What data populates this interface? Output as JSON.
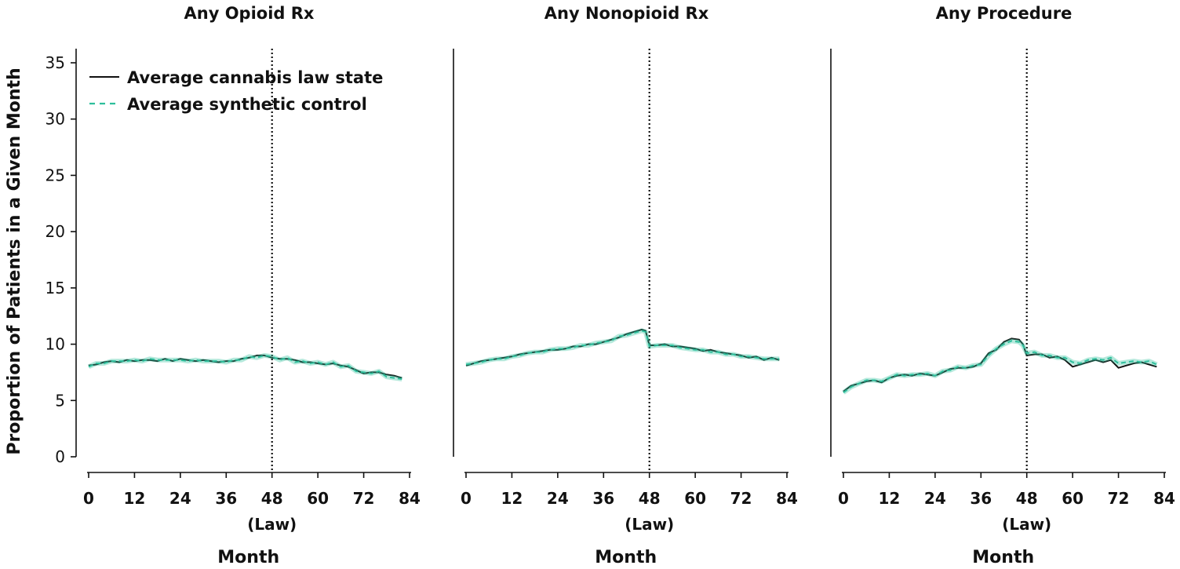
{
  "chart_data": [
    {
      "type": "line",
      "title": "Any Opioid Rx",
      "xlabel": "Month",
      "ylabel": "Proportion of Patients in a Given Month",
      "xlim": [
        0,
        84
      ],
      "ylim": [
        0,
        35
      ],
      "xticks": [
        0,
        12,
        24,
        36,
        48,
        60,
        72,
        84
      ],
      "yticks": [
        0,
        5,
        10,
        15,
        20,
        25,
        30,
        35
      ],
      "law_month": 48,
      "law_label": "(Law)",
      "legend": {
        "placement": "top-left"
      },
      "series": [
        {
          "name": "Average cannabis law state",
          "color": "#111111",
          "style": "solid",
          "x": [
            0,
            2,
            4,
            6,
            8,
            10,
            12,
            14,
            16,
            18,
            20,
            22,
            24,
            26,
            28,
            30,
            32,
            34,
            36,
            38,
            40,
            42,
            44,
            46,
            48,
            50,
            52,
            54,
            56,
            58,
            60,
            62,
            64,
            66,
            68,
            70,
            72,
            74,
            76,
            78,
            80,
            82
          ],
          "y": [
            8.1,
            8.2,
            8.4,
            8.5,
            8.4,
            8.6,
            8.5,
            8.6,
            8.6,
            8.5,
            8.7,
            8.5,
            8.7,
            8.6,
            8.5,
            8.6,
            8.5,
            8.4,
            8.5,
            8.5,
            8.7,
            8.8,
            9.0,
            9.0,
            8.8,
            8.7,
            8.7,
            8.6,
            8.4,
            8.4,
            8.3,
            8.2,
            8.3,
            8.1,
            8.0,
            7.7,
            7.4,
            7.5,
            7.5,
            7.3,
            7.2,
            7.0
          ]
        },
        {
          "name": "Average synthetic control",
          "color": "#2ebf9c",
          "style": "dashed",
          "x": [
            0,
            2,
            4,
            6,
            8,
            10,
            12,
            14,
            16,
            18,
            20,
            22,
            24,
            26,
            28,
            30,
            32,
            34,
            36,
            38,
            40,
            42,
            44,
            46,
            48,
            50,
            52,
            54,
            56,
            58,
            60,
            62,
            64,
            66,
            68,
            70,
            72,
            74,
            76,
            78,
            80,
            82
          ],
          "y": [
            8.0,
            8.3,
            8.3,
            8.5,
            8.5,
            8.5,
            8.6,
            8.5,
            8.7,
            8.6,
            8.6,
            8.6,
            8.6,
            8.5,
            8.6,
            8.5,
            8.5,
            8.5,
            8.4,
            8.6,
            8.6,
            8.9,
            8.8,
            9.0,
            8.9,
            8.6,
            8.8,
            8.4,
            8.5,
            8.3,
            8.4,
            8.2,
            8.4,
            8.0,
            8.1,
            7.6,
            7.5,
            7.4,
            7.6,
            7.1,
            7.0,
            6.9
          ]
        }
      ]
    },
    {
      "type": "line",
      "title": "Any Nonopioid Rx",
      "xlabel": "Month",
      "xlim": [
        0,
        84
      ],
      "ylim": [
        0,
        35
      ],
      "xticks": [
        0,
        12,
        24,
        36,
        48,
        60,
        72,
        84
      ],
      "law_month": 48,
      "law_label": "(Law)",
      "series": [
        {
          "name": "Average cannabis law state",
          "color": "#111111",
          "style": "solid",
          "x": [
            0,
            2,
            4,
            6,
            8,
            10,
            12,
            14,
            16,
            18,
            20,
            22,
            24,
            26,
            28,
            30,
            32,
            34,
            36,
            38,
            40,
            42,
            44,
            46,
            47,
            48,
            50,
            52,
            54,
            56,
            58,
            60,
            62,
            64,
            66,
            68,
            70,
            72,
            74,
            76,
            78,
            80,
            82
          ],
          "y": [
            8.1,
            8.3,
            8.5,
            8.6,
            8.7,
            8.8,
            8.9,
            9.1,
            9.2,
            9.3,
            9.4,
            9.5,
            9.5,
            9.6,
            9.8,
            9.8,
            10.0,
            10.0,
            10.2,
            10.4,
            10.6,
            10.9,
            11.1,
            11.3,
            11.2,
            9.9,
            9.9,
            10.0,
            9.8,
            9.8,
            9.7,
            9.6,
            9.4,
            9.5,
            9.3,
            9.2,
            9.1,
            9.0,
            8.8,
            8.9,
            8.6,
            8.8,
            8.6
          ]
        },
        {
          "name": "Average synthetic control",
          "color": "#2ebf9c",
          "style": "dashed",
          "x": [
            0,
            2,
            4,
            6,
            8,
            10,
            12,
            14,
            16,
            18,
            20,
            22,
            24,
            26,
            28,
            30,
            32,
            34,
            36,
            38,
            40,
            42,
            44,
            46,
            47,
            48,
            50,
            52,
            54,
            56,
            58,
            60,
            62,
            64,
            66,
            68,
            70,
            72,
            74,
            76,
            78,
            80,
            82
          ],
          "y": [
            8.2,
            8.3,
            8.4,
            8.6,
            8.7,
            8.7,
            8.9,
            9.0,
            9.2,
            9.3,
            9.3,
            9.5,
            9.6,
            9.6,
            9.7,
            9.9,
            9.9,
            10.1,
            10.2,
            10.3,
            10.7,
            10.8,
            11.0,
            11.2,
            11.1,
            9.8,
            9.9,
            9.9,
            9.9,
            9.7,
            9.6,
            9.5,
            9.5,
            9.3,
            9.3,
            9.1,
            9.1,
            8.9,
            8.9,
            8.8,
            8.7,
            8.7,
            8.7
          ]
        }
      ]
    },
    {
      "type": "line",
      "title": "Any Procedure",
      "xlabel": "Month",
      "xlim": [
        0,
        84
      ],
      "ylim": [
        0,
        35
      ],
      "xticks": [
        0,
        12,
        24,
        36,
        48,
        60,
        72,
        84
      ],
      "law_month": 48,
      "law_label": "(Law)",
      "series": [
        {
          "name": "Average cannabis law state",
          "color": "#111111",
          "style": "solid",
          "x": [
            0,
            2,
            4,
            6,
            8,
            10,
            12,
            14,
            16,
            18,
            20,
            22,
            24,
            26,
            28,
            30,
            32,
            34,
            36,
            38,
            40,
            42,
            44,
            46,
            47,
            48,
            50,
            52,
            54,
            56,
            58,
            60,
            62,
            64,
            66,
            68,
            70,
            72,
            74,
            76,
            78,
            80,
            82
          ],
          "y": [
            5.8,
            6.3,
            6.5,
            6.7,
            6.8,
            6.6,
            7.0,
            7.2,
            7.3,
            7.2,
            7.4,
            7.3,
            7.2,
            7.5,
            7.8,
            7.9,
            7.9,
            8.0,
            8.3,
            9.2,
            9.5,
            10.2,
            10.5,
            10.4,
            10.0,
            9.0,
            9.1,
            9.1,
            8.8,
            8.9,
            8.6,
            8.0,
            8.2,
            8.4,
            8.6,
            8.4,
            8.6,
            7.9,
            8.1,
            8.3,
            8.4,
            8.2,
            8.0
          ]
        },
        {
          "name": "Average synthetic control",
          "color": "#2ebf9c",
          "style": "dashed",
          "x": [
            0,
            2,
            4,
            6,
            8,
            10,
            12,
            14,
            16,
            18,
            20,
            22,
            24,
            26,
            28,
            30,
            32,
            34,
            36,
            38,
            40,
            42,
            44,
            46,
            47,
            48,
            50,
            52,
            54,
            56,
            58,
            60,
            62,
            64,
            66,
            68,
            70,
            72,
            74,
            76,
            78,
            80,
            82
          ],
          "y": [
            5.7,
            6.2,
            6.5,
            6.8,
            6.8,
            6.7,
            7.0,
            7.3,
            7.2,
            7.3,
            7.3,
            7.4,
            7.2,
            7.6,
            7.7,
            8.0,
            7.9,
            8.1,
            8.2,
            9.0,
            9.6,
            10.0,
            10.3,
            10.2,
            9.9,
            9.2,
            9.3,
            9.0,
            9.0,
            8.8,
            8.8,
            8.4,
            8.3,
            8.6,
            8.7,
            8.6,
            8.8,
            8.3,
            8.4,
            8.5,
            8.4,
            8.5,
            8.2
          ]
        }
      ]
    }
  ]
}
